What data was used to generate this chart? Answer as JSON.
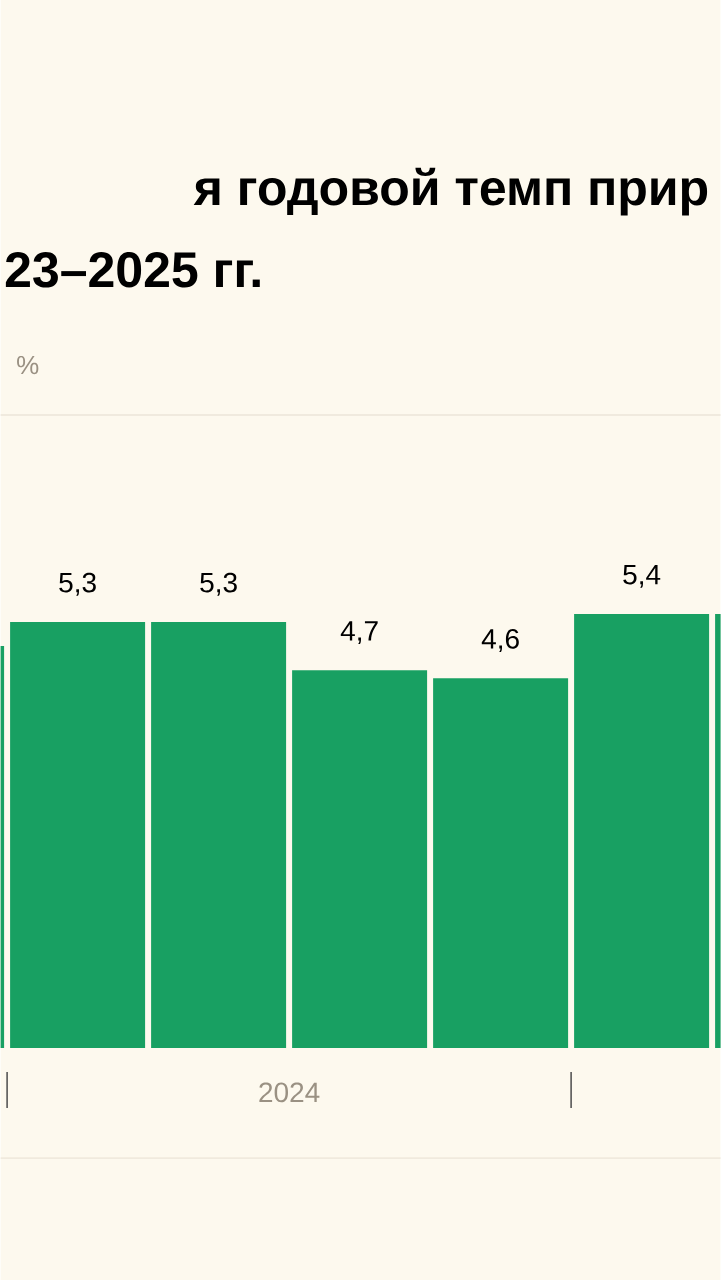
{
  "chart_data": {
    "type": "bar",
    "title": "я годовой темп прир",
    "subtitle": "23–2025 гг.",
    "categories": [
      null,
      null,
      null,
      null,
      null,
      null,
      null
    ],
    "values": [
      5.0,
      5.3,
      5.3,
      4.7,
      4.6,
      5.4,
      5.4
    ],
    "value_labels": [
      null,
      "5,3",
      "5,3",
      "4,7",
      "4,6",
      "5,4",
      null
    ],
    "color": "#18a062",
    "annotations": [
      "%",
      "2024"
    ]
  }
}
